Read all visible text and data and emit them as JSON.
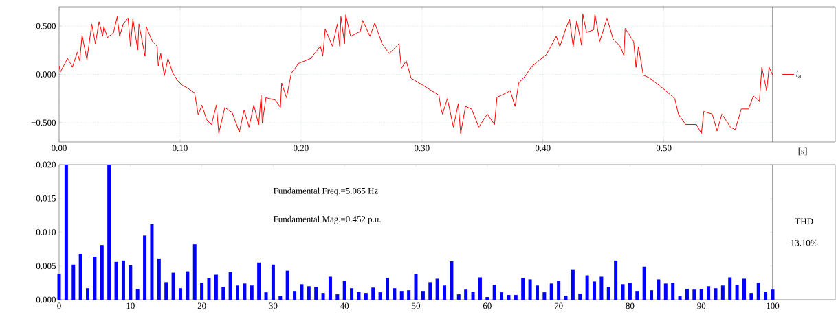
{
  "chart_data": [
    {
      "type": "line",
      "xlabel": "[s]",
      "xlim": [
        0,
        0.59
      ],
      "ylim": [
        -0.7,
        0.7
      ],
      "grid": true,
      "legend": "right",
      "xticks": [
        {
          "value": 0,
          "label": "0.00"
        },
        {
          "value": 0.1,
          "label": "0.10"
        },
        {
          "value": 0.2,
          "label": "0.20"
        },
        {
          "value": 0.3,
          "label": "0.30"
        },
        {
          "value": 0.4,
          "label": "0.40"
        },
        {
          "value": 0.5,
          "label": "0.50"
        }
      ],
      "yticks": [
        {
          "value": -0.5,
          "label": "−0.500"
        },
        {
          "value": 0,
          "label": "0.000"
        },
        {
          "value": 0.5,
          "label": "0.500"
        }
      ],
      "series": [
        {
          "name": "*i*$_{a}$",
          "color": "#ff0000",
          "x": [
            0.0,
            0.001,
            0.007,
            0.011,
            0.015,
            0.017,
            0.019,
            0.023,
            0.027,
            0.03,
            0.033,
            0.036,
            0.037,
            0.04,
            0.045,
            0.048,
            0.05,
            0.053,
            0.057,
            0.059,
            0.061,
            0.065,
            0.066,
            0.071,
            0.072,
            0.077,
            0.081,
            0.082,
            0.084,
            0.087,
            0.09,
            0.094,
            0.098,
            0.102,
            0.106,
            0.112,
            0.115,
            0.118,
            0.122,
            0.126,
            0.13,
            0.132,
            0.137,
            0.143,
            0.149,
            0.153,
            0.157,
            0.161,
            0.165,
            0.167,
            0.168,
            0.171,
            0.179,
            0.183,
            0.184,
            0.188,
            0.192,
            0.198,
            0.208,
            0.216,
            0.218,
            0.22,
            0.226,
            0.23,
            0.232,
            0.233,
            0.236,
            0.237,
            0.241,
            0.249,
            0.251,
            0.257,
            0.261,
            0.267,
            0.273,
            0.281,
            0.283,
            0.287,
            0.291,
            0.301,
            0.314,
            0.316,
            0.317,
            0.321,
            0.326,
            0.33,
            0.332,
            0.336,
            0.341,
            0.347,
            0.354,
            0.36,
            0.362,
            0.369,
            0.373,
            0.377,
            0.38,
            0.386,
            0.39,
            0.395,
            0.403,
            0.411,
            0.414,
            0.419,
            0.422,
            0.425,
            0.428,
            0.432,
            0.433,
            0.436,
            0.442,
            0.443,
            0.447,
            0.453,
            0.458,
            0.464,
            0.467,
            0.468,
            0.475,
            0.477,
            0.479,
            0.483,
            0.488,
            0.499,
            0.509,
            0.512,
            0.518,
            0.527,
            0.531,
            0.533,
            0.54,
            0.544,
            0.548,
            0.555,
            0.559,
            0.564,
            0.57,
            0.574,
            0.579,
            0.581,
            0.585,
            0.587,
            0.59
          ],
          "values": [
            0.089,
            0.025,
            0.165,
            0.076,
            0.229,
            0.14,
            0.406,
            0.152,
            0.521,
            0.318,
            0.546,
            0.394,
            0.495,
            0.381,
            0.432,
            0.597,
            0.394,
            0.521,
            0.584,
            0.292,
            0.572,
            0.254,
            0.521,
            0.191,
            0.495,
            0.343,
            0.292,
            0.089,
            0.216,
            -0.013,
            0.165,
            0.013,
            -0.064,
            -0.114,
            -0.14,
            -0.191,
            -0.419,
            -0.318,
            -0.47,
            -0.521,
            -0.318,
            -0.61,
            -0.343,
            -0.394,
            -0.597,
            -0.368,
            -0.546,
            -0.318,
            -0.521,
            -0.216,
            -0.508,
            -0.241,
            -0.267,
            -0.343,
            -0.089,
            -0.241,
            0.013,
            0.114,
            0.165,
            0.292,
            0.191,
            0.47,
            0.292,
            0.521,
            0.292,
            0.597,
            0.318,
            0.617,
            0.394,
            0.445,
            0.559,
            0.394,
            0.533,
            0.318,
            0.216,
            0.318,
            0.064,
            0.14,
            -0.038,
            -0.114,
            -0.216,
            -0.368,
            -0.411,
            -0.25,
            -0.546,
            -0.304,
            -0.613,
            -0.331,
            -0.358,
            -0.546,
            -0.411,
            -0.519,
            -0.237,
            -0.196,
            -0.169,
            -0.331,
            -0.089,
            -0.008,
            0.073,
            0.126,
            0.207,
            0.395,
            0.288,
            0.476,
            0.57,
            0.288,
            0.556,
            0.301,
            0.624,
            0.435,
            0.462,
            0.624,
            0.341,
            0.583,
            0.368,
            0.288,
            0.194,
            0.476,
            0.341,
            0.073,
            0.288,
            -0.008,
            -0.035,
            -0.142,
            -0.25,
            -0.411,
            -0.519,
            -0.519,
            -0.613,
            -0.384,
            -0.411,
            -0.586,
            -0.411,
            -0.546,
            -0.573,
            -0.358,
            -0.358,
            -0.223,
            -0.277,
            0.073,
            -0.169,
            0.073,
            -0.008
          ]
        }
      ]
    },
    {
      "type": "bar",
      "xlim": [
        0,
        100
      ],
      "ylim": [
        0,
        0.02
      ],
      "color": "#0000ff",
      "xticks": [
        0,
        10,
        20,
        30,
        40,
        50,
        60,
        70,
        80,
        90,
        100
      ],
      "yticks": [
        {
          "value": 0,
          "label": "0.000"
        },
        {
          "value": 0.005,
          "label": "0.005"
        },
        {
          "value": 0.01,
          "label": "0.010"
        },
        {
          "value": 0.015,
          "label": "0.015"
        },
        {
          "value": 0.02,
          "label": "0.020"
        }
      ],
      "x": [
        0,
        1,
        2,
        3,
        4,
        5,
        6,
        7,
        8,
        9,
        10,
        11,
        12,
        13,
        14,
        15,
        16,
        17,
        18,
        19,
        20,
        21,
        22,
        23,
        24,
        25,
        26,
        27,
        28,
        29,
        30,
        31,
        32,
        33,
        34,
        35,
        36,
        37,
        38,
        39,
        40,
        41,
        42,
        43,
        44,
        45,
        46,
        47,
        48,
        49,
        50,
        51,
        52,
        53,
        54,
        55,
        56,
        57,
        58,
        59,
        60,
        61,
        62,
        63,
        64,
        65,
        66,
        67,
        68,
        69,
        70,
        71,
        72,
        73,
        74,
        75,
        76,
        77,
        78,
        79,
        80,
        81,
        82,
        83,
        84,
        85,
        86,
        87,
        88,
        89,
        90,
        91,
        92,
        93,
        94,
        95,
        96,
        97,
        98,
        99,
        100
      ],
      "values": [
        0.0038,
        0.02,
        0.0052,
        0.0068,
        0.0017,
        0.0064,
        0.0081,
        0.02,
        0.0056,
        0.0058,
        0.0051,
        0.0016,
        0.0095,
        0.0112,
        0.0061,
        0.0026,
        0.004,
        0.0017,
        0.0042,
        0.0082,
        0.0025,
        0.0032,
        0.0037,
        0.0019,
        0.0041,
        0.0021,
        0.0024,
        0.0021,
        0.0055,
        0.0011,
        0.0052,
        0.0005,
        0.0043,
        0.0013,
        0.0023,
        0.002,
        0.0019,
        0.001,
        0.0034,
        0.0008,
        0.0028,
        0.0017,
        0.0012,
        0.001,
        0.0018,
        0.0011,
        0.0032,
        0.0017,
        0.0013,
        0.0014,
        0.0038,
        0.0013,
        0.0026,
        0.0031,
        0.0021,
        0.0057,
        0.0008,
        0.0015,
        0.0012,
        0.0033,
        0.0004,
        0.0022,
        0.0011,
        0.0007,
        0.0007,
        0.0032,
        0.003,
        0.0021,
        0.0011,
        0.0024,
        0.0028,
        0.0006,
        0.0045,
        0.0009,
        0.0036,
        0.0027,
        0.0034,
        0.0019,
        0.0058,
        0.0023,
        0.0025,
        0.0013,
        0.0049,
        0.0014,
        0.003,
        0.0024,
        0.0025,
        0.0005,
        0.0016,
        0.0015,
        0.0016,
        0.002,
        0.0017,
        0.0021,
        0.0033,
        0.0022,
        0.0031,
        0.001,
        0.0025,
        0.0012,
        0.0015
      ],
      "annotations": [
        "Fundamental Freq.=5.065 Hz",
        "Fundamental Mag.=0.452 p.u.",
        "THD",
        "13.10%"
      ]
    }
  ]
}
